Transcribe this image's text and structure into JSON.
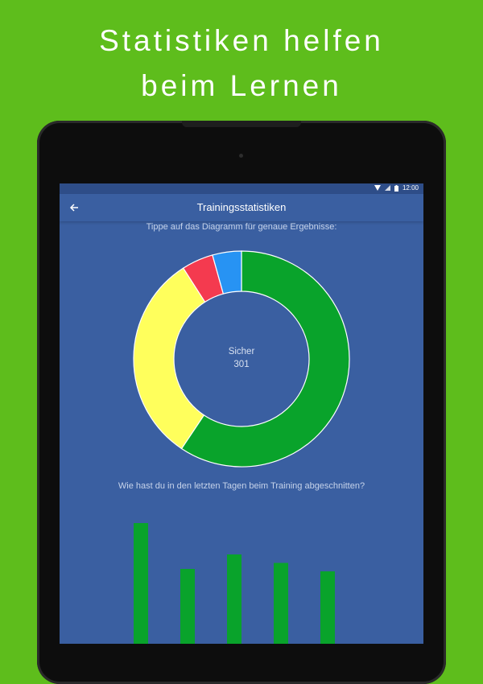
{
  "promo": {
    "line1": "Statistiken helfen",
    "line2": "beim Lernen"
  },
  "status_bar": {
    "time": "12:00",
    "icons": [
      "wifi-icon",
      "signal-icon",
      "battery-icon"
    ]
  },
  "app_bar": {
    "title": "Trainingsstatistiken",
    "back_icon": "arrow-left-icon"
  },
  "hint_text": "Tippe auf das Diagramm für genaue Ergebnisse:",
  "donut": {
    "center_title": "Sicher",
    "center_value": "301",
    "segments": [
      {
        "color": "#09a32b",
        "value": 301
      },
      {
        "color": "#ffff5c",
        "value": 160
      },
      {
        "color": "#f43a4f",
        "value": 24
      },
      {
        "color": "#2793f3",
        "value": 22
      }
    ]
  },
  "question_text": "Wie hast du in den letzten Tagen beim Training abgeschnitten?",
  "chart_data": {
    "type": "bar",
    "categories": [
      "",
      "",
      "",
      "",
      ""
    ],
    "values": [
      100,
      62,
      74,
      67,
      60
    ],
    "color": "#09a32b",
    "title": "",
    "xlabel": "",
    "ylabel": ""
  },
  "colors": {
    "background": "#5ebd1c",
    "screen": "#3a5fa1",
    "statusbar": "#2e4d88",
    "tablet": "#0d0d0d"
  }
}
